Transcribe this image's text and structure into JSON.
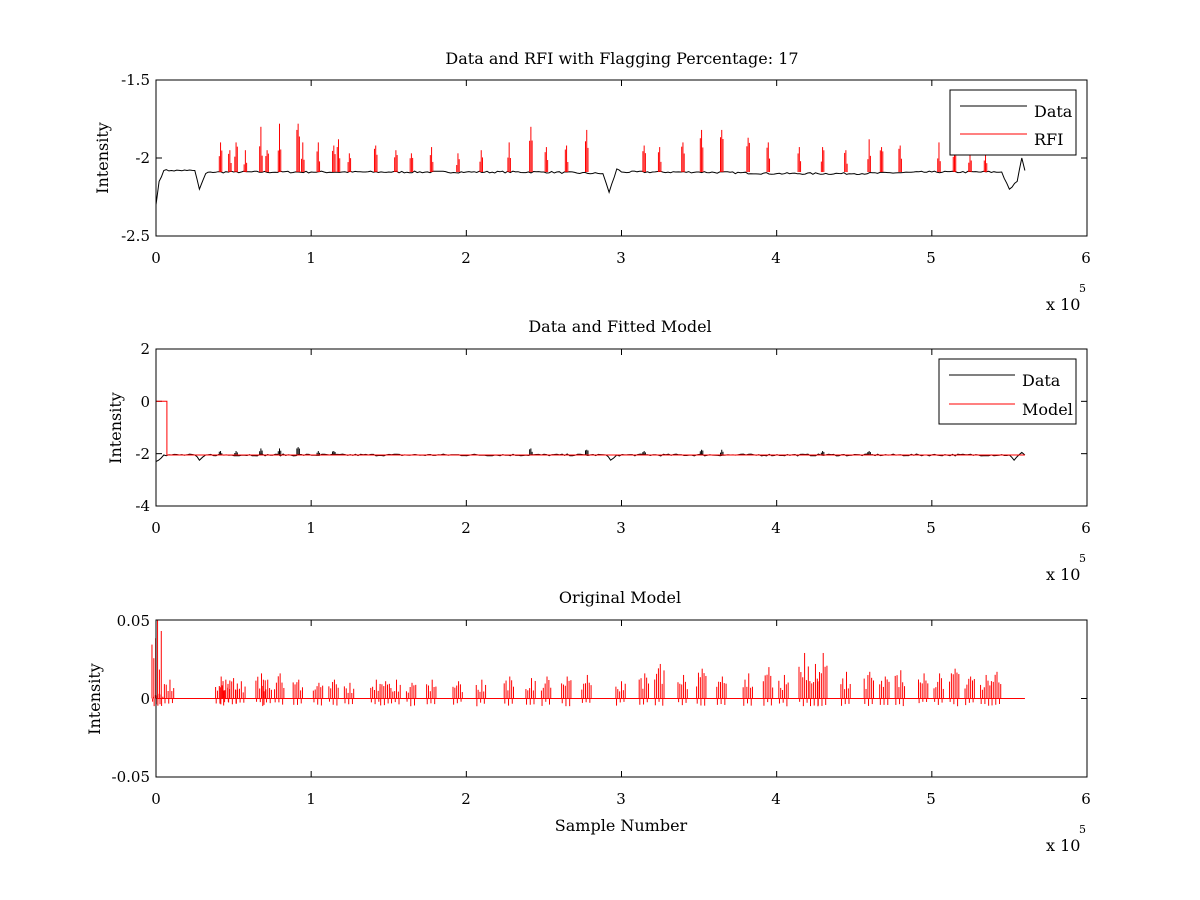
{
  "figure": {
    "background": "#ffffff",
    "colors": {
      "data": "#000000",
      "rfi": "#ff0000",
      "model": "#ff0000"
    },
    "x_multiplier": {
      "prefix": "x 10",
      "exponent": "5"
    }
  },
  "chart_data": [
    {
      "type": "line",
      "title": "Data and RFI with Flagging Percentage: 17",
      "xlabel": "",
      "ylabel": "Intensity",
      "xlim": [
        0,
        6
      ],
      "ylim": [
        -2.5,
        -1.5
      ],
      "x_ticks": [
        "0",
        "1",
        "2",
        "3",
        "4",
        "5",
        "6"
      ],
      "y_ticks": [
        "-1.5",
        "-2",
        "-2.5"
      ],
      "y_tick_values": [
        -1.5,
        -2,
        -2.5
      ],
      "x_multiplier": "x 10^5",
      "legend": {
        "placement": "top-right",
        "entries": [
          "Data",
          "RFI"
        ]
      },
      "series": [
        {
          "name": "Data",
          "color": "#000000",
          "baseline": -2.09,
          "x": [
            0,
            0.02,
            0.05,
            0.1,
            0.2,
            0.25,
            0.28,
            0.32,
            0.35,
            0.5,
            1,
            1.5,
            2,
            2.5,
            2.88,
            2.92,
            2.97,
            3.0,
            3.5,
            4,
            4.5,
            5,
            5.45,
            5.5,
            5.55,
            5.58,
            5.6
          ],
          "y": [
            -2.3,
            -2.15,
            -2.08,
            -2.08,
            -2.08,
            -2.08,
            -2.2,
            -2.1,
            -2.09,
            -2.09,
            -2.09,
            -2.09,
            -2.09,
            -2.09,
            -2.1,
            -2.22,
            -2.07,
            -2.09,
            -2.09,
            -2.1,
            -2.1,
            -2.09,
            -2.09,
            -2.2,
            -2.15,
            -2.0,
            -2.08
          ]
        },
        {
          "name": "RFI",
          "color": "#ff0000",
          "baseline": -2.09,
          "spike_x": [
            0.42,
            0.48,
            0.52,
            0.58,
            0.68,
            0.72,
            0.8,
            0.92,
            0.95,
            1.05,
            1.15,
            1.18,
            1.25,
            1.42,
            1.55,
            1.65,
            1.78,
            1.95,
            2.1,
            2.28,
            2.42,
            2.52,
            2.65,
            2.78,
            3.15,
            3.25,
            3.4,
            3.52,
            3.65,
            3.82,
            3.95,
            4.15,
            4.3,
            4.45,
            4.6,
            4.68,
            4.8,
            5.05,
            5.15,
            5.25,
            5.35
          ],
          "spike_y": [
            -1.9,
            -1.95,
            -1.9,
            -1.95,
            -1.8,
            -1.95,
            -1.78,
            -1.78,
            -1.9,
            -1.9,
            -1.92,
            -1.88,
            -1.97,
            -1.92,
            -1.95,
            -1.97,
            -1.93,
            -1.97,
            -1.95,
            -1.9,
            -1.8,
            -1.93,
            -1.92,
            -1.82,
            -1.92,
            -1.93,
            -1.9,
            -1.82,
            -1.82,
            -1.87,
            -1.9,
            -1.93,
            -1.93,
            -1.95,
            -1.88,
            -1.93,
            -1.92,
            -1.9,
            -1.93,
            -1.95,
            -1.97
          ]
        }
      ]
    },
    {
      "type": "line",
      "title": "Data and Fitted Model",
      "xlabel": "",
      "ylabel": "Intensity",
      "xlim": [
        0,
        6
      ],
      "ylim": [
        -4,
        2
      ],
      "x_ticks": [
        "0",
        "1",
        "2",
        "3",
        "4",
        "5",
        "6"
      ],
      "y_ticks": [
        "2",
        "0",
        "-2",
        "-4"
      ],
      "y_tick_values": [
        2,
        0,
        -2,
        -4
      ],
      "x_multiplier": "x 10^5",
      "legend": {
        "placement": "top-right",
        "entries": [
          "Data",
          "Model"
        ]
      },
      "series": [
        {
          "name": "Data",
          "color": "#000000",
          "baseline": -2.05,
          "x": [
            0,
            0.05,
            0.25,
            0.28,
            0.32,
            2.9,
            2.93,
            2.97,
            5.5,
            5.53,
            5.58,
            5.6
          ],
          "y": [
            -2.3,
            -2.05,
            -2.05,
            -2.25,
            -2.05,
            -2.05,
            -2.25,
            -2.05,
            -2.05,
            -2.25,
            -1.95,
            -2.05
          ],
          "spike_x": [
            0.42,
            0.52,
            0.68,
            0.8,
            0.92,
            1.05,
            1.15,
            2.42,
            2.78,
            3.15,
            3.52,
            3.65,
            4.3,
            4.6
          ],
          "spike_y": [
            -1.9,
            -1.9,
            -1.8,
            -1.8,
            -1.75,
            -1.9,
            -1.9,
            -1.8,
            -1.85,
            -1.9,
            -1.85,
            -1.85,
            -1.9,
            -1.9
          ]
        },
        {
          "name": "Model",
          "color": "#ff0000",
          "x": [
            0,
            0.07,
            0.07,
            5.6
          ],
          "y": [
            0,
            0,
            -2.05,
            -2.05
          ]
        }
      ]
    },
    {
      "type": "line",
      "title": "Original Model",
      "xlabel": "Sample Number",
      "ylabel": "Intensity",
      "xlim": [
        0,
        6
      ],
      "ylim": [
        -0.05,
        0.05
      ],
      "x_ticks": [
        "0",
        "1",
        "2",
        "3",
        "4",
        "5",
        "6"
      ],
      "y_ticks": [
        "0.05",
        "0",
        "-0.05"
      ],
      "y_tick_values": [
        0.05,
        0,
        -0.05
      ],
      "x_multiplier": "x 10^5",
      "series": [
        {
          "name": "",
          "color": "#ff0000",
          "baseline": 0,
          "spike_x": [
            0.01,
            0.02,
            0.09,
            0.42,
            0.45,
            0.5,
            0.55,
            0.68,
            0.72,
            0.8,
            0.92,
            1.05,
            1.15,
            1.25,
            1.42,
            1.48,
            1.55,
            1.65,
            1.78,
            1.95,
            2.1,
            2.28,
            2.42,
            2.52,
            2.65,
            2.78,
            3.0,
            3.15,
            3.25,
            3.4,
            3.52,
            3.65,
            3.82,
            3.95,
            4.05,
            4.18,
            4.25,
            4.3,
            4.45,
            4.6,
            4.7,
            4.8,
            4.95,
            5.05,
            5.15,
            5.25,
            5.35,
            5.42
          ],
          "spike_y": [
            0.05,
            0.003,
            0.012,
            0.014,
            0.012,
            0.013,
            0.011,
            0.016,
            0.012,
            0.016,
            0.012,
            0.01,
            0.012,
            0.01,
            0.012,
            0.011,
            0.012,
            0.01,
            0.012,
            0.011,
            0.012,
            0.014,
            0.013,
            0.014,
            0.014,
            0.015,
            0.011,
            0.016,
            0.022,
            0.015,
            0.019,
            0.014,
            0.016,
            0.02,
            0.015,
            0.029,
            0.022,
            0.029,
            0.017,
            0.017,
            0.014,
            0.018,
            0.016,
            0.016,
            0.019,
            0.014,
            0.015,
            0.017
          ],
          "neg_y": -0.005
        }
      ]
    }
  ]
}
